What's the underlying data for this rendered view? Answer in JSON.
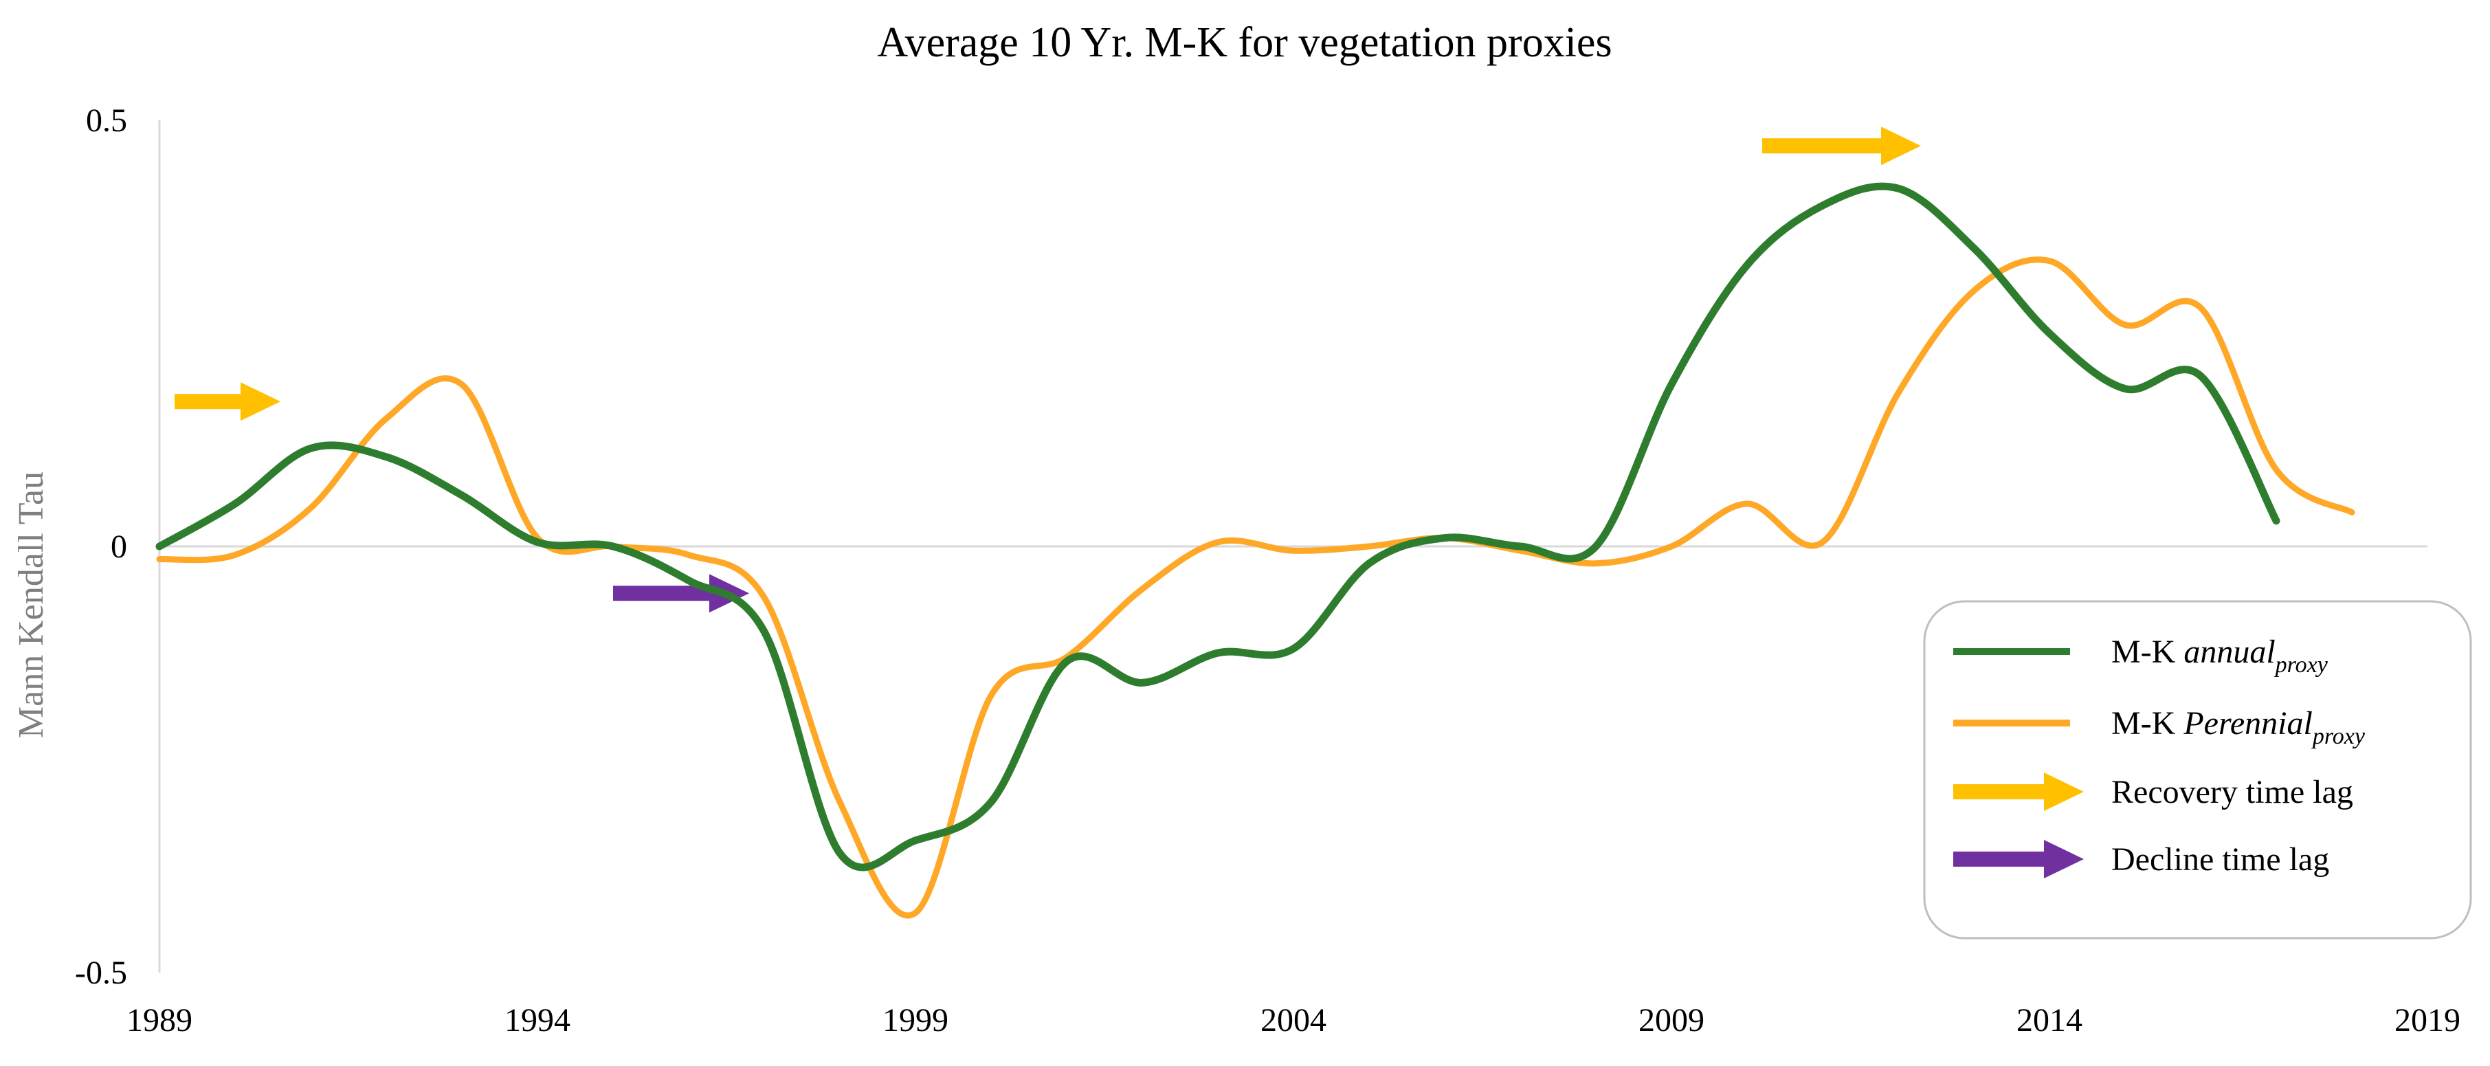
{
  "chart_data": {
    "type": "line",
    "title": "Average 10 Yr. M-K for vegetation proxies",
    "xlabel": "",
    "ylabel": "Mann Kendall Tau",
    "xlim": [
      1989,
      2019
    ],
    "ylim": [
      -0.5,
      0.5
    ],
    "x_ticks": [
      "1989",
      "1994",
      "1999",
      "2004",
      "2009",
      "2014",
      "2019"
    ],
    "y_ticks": [
      "0.5",
      "0",
      "-0.5"
    ],
    "grid": false,
    "legend_position": "bottom-right",
    "series": [
      {
        "name": "M-K annual_proxy",
        "color": "#2e7d2e",
        "x": [
          1989,
          1990,
          1991,
          1992,
          1993,
          1994,
          1995,
          1996,
          1997,
          1998,
          1999,
          2000,
          2001,
          2002,
          2003,
          2004,
          2005,
          2006,
          2007,
          2008,
          2009,
          2010,
          2011,
          2012,
          2013,
          2014,
          2015,
          2016,
          2017
        ],
        "y": [
          0.0,
          0.05,
          0.115,
          0.105,
          0.06,
          0.005,
          0.0,
          -0.04,
          -0.1,
          -0.36,
          -0.345,
          -0.3,
          -0.135,
          -0.16,
          -0.125,
          -0.12,
          -0.02,
          0.01,
          0.0,
          0.0,
          0.19,
          0.33,
          0.4,
          0.42,
          0.35,
          0.25,
          0.185,
          0.2,
          0.03
        ]
      },
      {
        "name": "M-K Perennial_proxy",
        "color": "#ffa726",
        "x": [
          1989,
          1990,
          1991,
          1992,
          1993,
          1994,
          1995,
          1996,
          1997,
          1998,
          1999,
          2000,
          2001,
          2002,
          2003,
          2004,
          2005,
          2006,
          2007,
          2008,
          2009,
          2010,
          2011,
          2012,
          2013,
          2014,
          2015,
          2016,
          2017,
          2018
        ],
        "y": [
          -0.015,
          -0.01,
          0.045,
          0.15,
          0.19,
          0.01,
          0.0,
          -0.01,
          -0.06,
          -0.3,
          -0.43,
          -0.175,
          -0.13,
          -0.05,
          0.005,
          -0.005,
          0.0,
          0.01,
          -0.005,
          -0.02,
          0.0,
          0.05,
          0.005,
          0.18,
          0.3,
          0.335,
          0.26,
          0.28,
          0.09,
          0.04
        ]
      }
    ],
    "annotations": [
      {
        "name": "Recovery time lag",
        "color": "#ffc000",
        "x_start": 1989.2,
        "x_end": 1990.6,
        "y": 0.17
      },
      {
        "name": "Decline time lag",
        "color": "#7030a0",
        "x_start": 1995.0,
        "x_end": 1996.8,
        "y": -0.055
      },
      {
        "name": "Recovery time lag",
        "color": "#ffc000",
        "x_start": 2010.2,
        "x_end": 2012.3,
        "y": 0.47
      }
    ],
    "legend": {
      "items": [
        {
          "type": "line",
          "label_prefix": "M-K ",
          "label_italic": "annual",
          "label_sub": "proxy",
          "color": "#2e7d2e"
        },
        {
          "type": "line",
          "label_prefix": "M-K ",
          "label_italic": "Perennial",
          "label_sub": "proxy",
          "color": "#ffa726"
        },
        {
          "type": "arrow",
          "label_prefix": "Recovery time lag",
          "label_italic": "",
          "label_sub": "",
          "color": "#ffc000"
        },
        {
          "type": "arrow",
          "label_prefix": "Decline time lag",
          "label_italic": "",
          "label_sub": "",
          "color": "#7030a0"
        }
      ]
    }
  }
}
